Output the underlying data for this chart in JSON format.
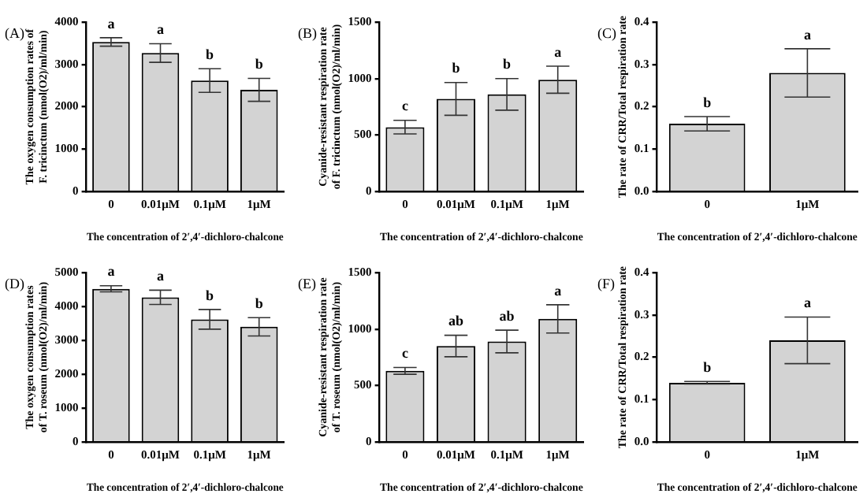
{
  "chart_data": [
    {
      "type": "bar",
      "title": "(A)",
      "xlabel": "The concentration of 2′,4′-dichloro-chalcone",
      "ylabel": "The oxygen consumption rates of F. tricinctum (nmol(O2)/ml/min)",
      "categories": [
        "0",
        "0.01μM",
        "0.1μM",
        "1μM"
      ],
      "values": [
        3530,
        3270,
        2620,
        2400
      ],
      "errors": [
        100,
        220,
        280,
        270
      ],
      "value_labels": [
        "a",
        "a",
        "b",
        "b"
      ],
      "color": "#d3d3d3",
      "ylim": [
        0,
        4000
      ],
      "yticks": [
        0,
        1000,
        2000,
        3000,
        4000
      ],
      "grid": false,
      "legend": false
    },
    {
      "type": "bar",
      "title": "(B)",
      "xlabel": "The concentration of 2′,4′-dichloro-chalcone",
      "ylabel": "Cyanide-resistant respiration rate of F. tricinctum (nmol(O2)/ml/min)",
      "categories": [
        "0",
        "0.01μM",
        "0.1μM",
        "1μM"
      ],
      "values": [
        570,
        820,
        860,
        990
      ],
      "errors": [
        60,
        145,
        140,
        120
      ],
      "value_labels": [
        "c",
        "b",
        "b",
        "a"
      ],
      "color": "#d3d3d3",
      "ylim": [
        0,
        1500
      ],
      "yticks": [
        0,
        500,
        1000,
        1500
      ],
      "grid": false,
      "legend": false
    },
    {
      "type": "bar",
      "title": "(C)",
      "xlabel": "The concentration of 2′,4′-dichloro-chalcone",
      "ylabel": "The rate of CRR/Total respiration rate",
      "categories": [
        "0",
        "1μM"
      ],
      "values": [
        0.16,
        0.28
      ],
      "errors": [
        0.017,
        0.057
      ],
      "value_labels": [
        "b",
        "a"
      ],
      "color": "#d3d3d3",
      "ylim": [
        0,
        0.4
      ],
      "yticks": [
        {
          "value": 0,
          "label": "0.0"
        },
        0.1,
        0.2,
        0.3,
        0.4
      ],
      "grid": false,
      "legend": false
    },
    {
      "type": "bar",
      "title": "(D)",
      "xlabel": "The concentration of 2′,4′-dichloro-chalcone",
      "ylabel": "The oxygen consumption rates of T. roseum (nmol(O2)/ml/min)",
      "categories": [
        "0",
        "0.01μM",
        "0.1μM",
        "1μM"
      ],
      "values": [
        4520,
        4270,
        3620,
        3400
      ],
      "errors": [
        90,
        210,
        290,
        270
      ],
      "value_labels": [
        "a",
        "a",
        "b",
        "b"
      ],
      "color": "#d3d3d3",
      "ylim": [
        0,
        5000
      ],
      "yticks": [
        0,
        1000,
        2000,
        3000,
        4000,
        5000
      ],
      "grid": false,
      "legend": false
    },
    {
      "type": "bar",
      "title": "(E)",
      "xlabel": "The concentration of 2′,4′-dichloro-chalcone",
      "ylabel": "Cyanide-resistant respiration rate of T. roseum (nmol(O2)/ml/min)",
      "categories": [
        "0",
        "0.01μM",
        "0.1μM",
        "1μM"
      ],
      "values": [
        630,
        850,
        890,
        1090
      ],
      "errors": [
        30,
        95,
        100,
        125
      ],
      "value_labels": [
        "c",
        "ab",
        "ab",
        "a"
      ],
      "color": "#d3d3d3",
      "ylim": [
        0,
        1500
      ],
      "yticks": [
        0,
        500,
        1000,
        1500
      ],
      "grid": false,
      "legend": false
    },
    {
      "type": "bar",
      "title": "(F)",
      "xlabel": "The concentration of 2′,4′-dichloro-chalcone",
      "ylabel": "The rate of CRR/Total respiration rate",
      "categories": [
        "0",
        "1μM"
      ],
      "values": [
        0.14,
        0.24
      ],
      "errors": [
        0.003,
        0.055
      ],
      "value_labels": [
        "b",
        "a"
      ],
      "color": "#d3d3d3",
      "ylim": [
        0,
        0.4
      ],
      "yticks": [
        {
          "value": 0,
          "label": "0.0"
        },
        0.1,
        0.2,
        0.3,
        0.4
      ],
      "grid": false,
      "legend": false
    }
  ]
}
